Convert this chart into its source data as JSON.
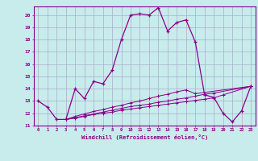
{
  "xlabel": "Windchill (Refroidissement éolien,°C)",
  "bg_color": "#c8ecec",
  "grid_color": "#aaaacc",
  "line_color": "#880088",
  "x_values": [
    0,
    1,
    2,
    3,
    4,
    5,
    6,
    7,
    8,
    9,
    10,
    11,
    12,
    13,
    14,
    15,
    16,
    17,
    18,
    19,
    20,
    21,
    22,
    23
  ],
  "series1": [
    13.0,
    12.5,
    11.5,
    11.5,
    14.0,
    13.2,
    14.6,
    14.4,
    15.5,
    18.0,
    20.0,
    20.1,
    20.0,
    20.6,
    18.7,
    19.4,
    19.6,
    17.8,
    13.5,
    13.3,
    12.0,
    11.3,
    12.2,
    14.2
  ],
  "series2": [
    null,
    null,
    null,
    11.5,
    11.6,
    11.75,
    11.9,
    12.0,
    12.1,
    12.25,
    12.35,
    12.45,
    12.55,
    12.65,
    12.75,
    12.85,
    12.95,
    13.05,
    13.15,
    13.25,
    13.5,
    null,
    null,
    14.2
  ],
  "series3": [
    null,
    null,
    null,
    11.5,
    11.65,
    11.8,
    11.95,
    12.1,
    12.25,
    12.4,
    12.55,
    12.65,
    12.75,
    12.9,
    13.0,
    13.15,
    13.25,
    13.4,
    13.55,
    13.65,
    null,
    null,
    null,
    14.2
  ],
  "series4": [
    null,
    null,
    null,
    11.5,
    11.75,
    11.95,
    12.15,
    12.3,
    12.5,
    12.65,
    12.85,
    13.0,
    13.2,
    13.4,
    13.55,
    13.75,
    13.9,
    13.6,
    null,
    null,
    null,
    null,
    null,
    14.2
  ],
  "ylim": [
    11,
    20.7
  ],
  "xlim": [
    -0.5,
    23.5
  ],
  "yticks": [
    11,
    12,
    13,
    14,
    15,
    16,
    17,
    18,
    19,
    20
  ],
  "xticks": [
    0,
    1,
    2,
    3,
    4,
    5,
    6,
    7,
    8,
    9,
    10,
    11,
    12,
    13,
    14,
    15,
    16,
    17,
    18,
    19,
    20,
    21,
    22,
    23
  ]
}
